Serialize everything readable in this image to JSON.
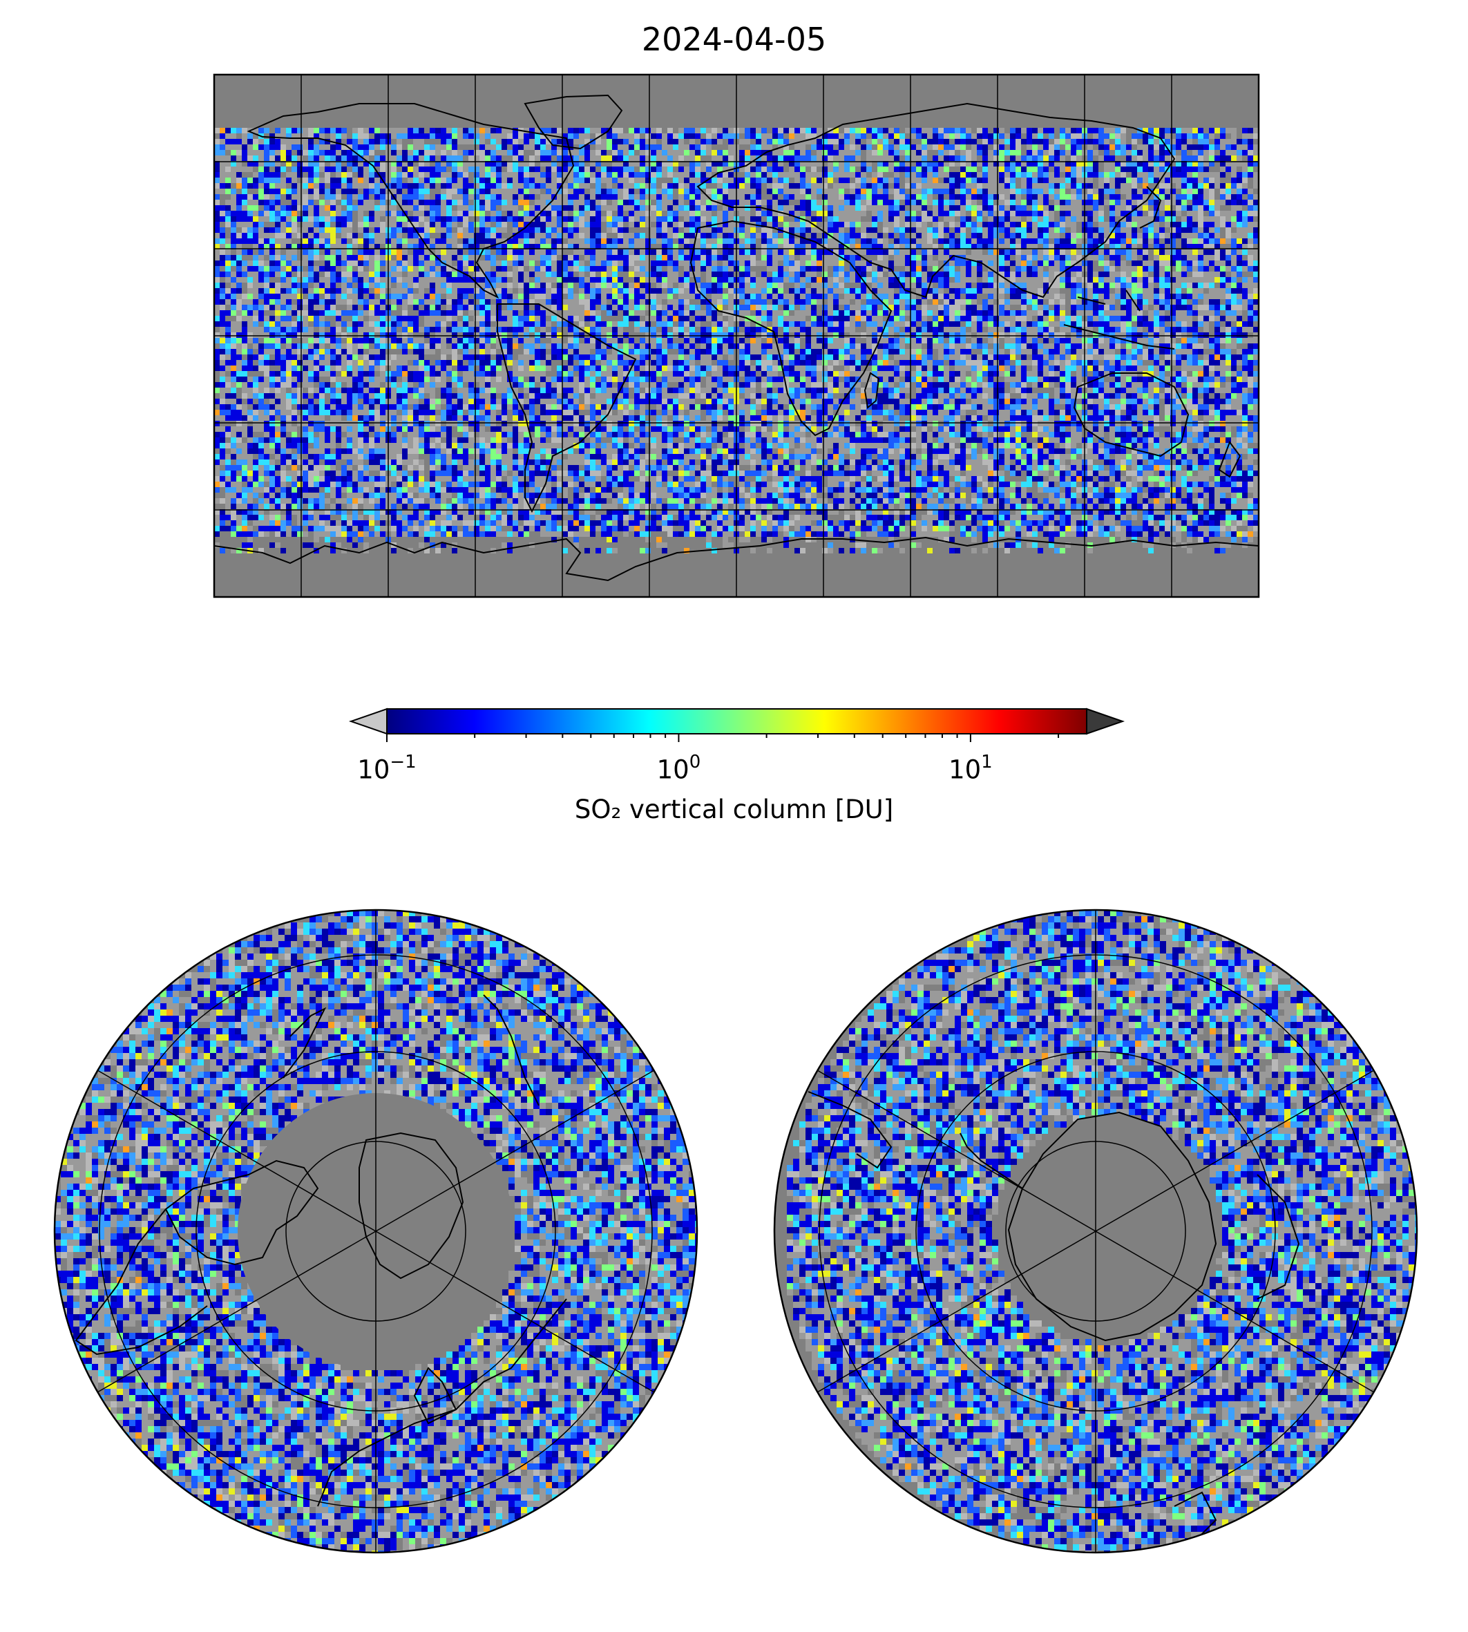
{
  "title": "2024-04-05",
  "colorbar": {
    "label": "SO₂ vertical column [DU]",
    "scale": "log",
    "range": [
      0.1,
      25
    ],
    "extend": "both",
    "under_color": "#c8c8c8",
    "over_color": "#3a3a3a",
    "colormap": "jet",
    "colors": [
      "#00007f",
      "#0000ff",
      "#007fff",
      "#00ffff",
      "#7fff7f",
      "#ffff00",
      "#ff7f00",
      "#ff0000",
      "#7f0000"
    ],
    "ticks": [
      {
        "base": "10",
        "exp": "−1",
        "value": 0.1
      },
      {
        "base": "10",
        "exp": "0",
        "value": 1
      },
      {
        "base": "10",
        "exp": "1",
        "value": 10
      }
    ]
  },
  "maps": {
    "background_color": "#808080",
    "panels": [
      "global-platecarree",
      "north-polar-stereo",
      "south-polar-stereo"
    ]
  }
}
